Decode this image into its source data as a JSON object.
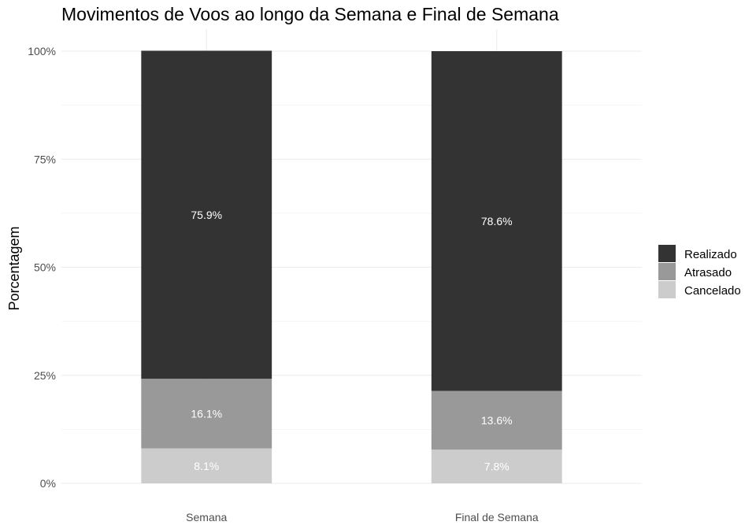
{
  "chart_data": {
    "type": "bar",
    "stacked": true,
    "title": "Movimentos de Voos ao longo da Semana e Final de Semana",
    "xlabel": "",
    "ylabel": "Porcentagem",
    "categories": [
      "Semana",
      "Final de Semana"
    ],
    "ylim": [
      0,
      100
    ],
    "yticks": [
      0,
      25,
      50,
      75,
      100
    ],
    "ytick_labels": [
      "0%",
      "25%",
      "50%",
      "75%",
      "100%"
    ],
    "grid": true,
    "legend_position": "right",
    "series": [
      {
        "name": "Cancelado",
        "values": [
          8.1,
          7.8
        ],
        "labels": [
          "8.1%",
          "7.8%"
        ],
        "color": "#cccccc"
      },
      {
        "name": "Atrasado",
        "values": [
          16.1,
          13.6
        ],
        "labels": [
          "16.1%",
          "13.6%"
        ],
        "color": "#999999"
      },
      {
        "name": "Realizado",
        "values": [
          75.9,
          78.6
        ],
        "labels": [
          "75.9%",
          "78.6%"
        ],
        "color": "#333333"
      }
    ],
    "legend_order": [
      "Realizado",
      "Atrasado",
      "Cancelado"
    ]
  }
}
